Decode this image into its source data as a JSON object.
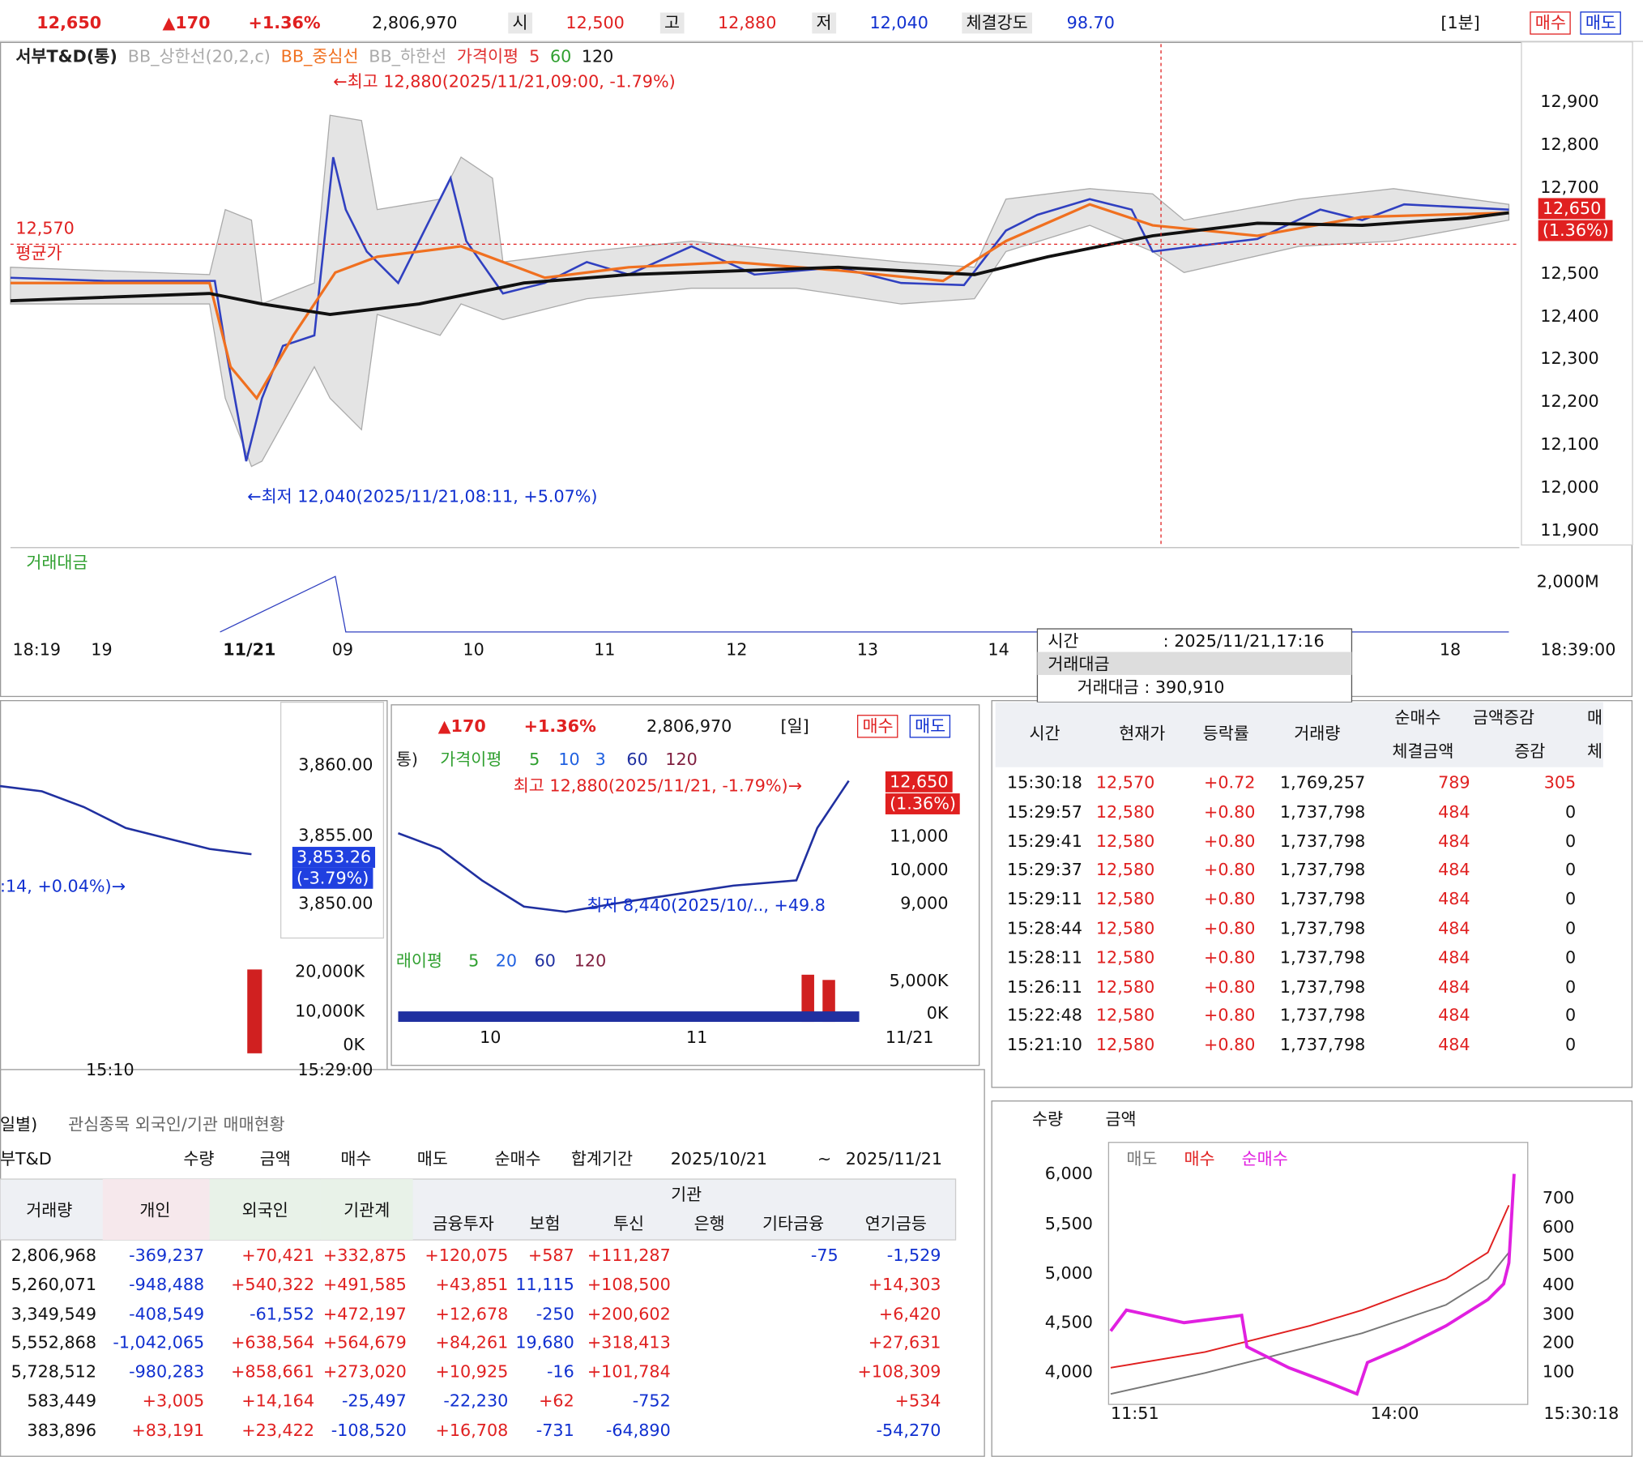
{
  "header": {
    "price": "12,650",
    "change": "▲170",
    "rate": "+1.36%",
    "volume": "2,806,970",
    "open_label": "시",
    "open": "12,500",
    "high_label": "고",
    "high": "12,880",
    "low_label": "저",
    "low": "12,040",
    "strength_label": "체결강도",
    "strength": "98.70",
    "period": "[1분]",
    "buy": "매수",
    "sell": "매도"
  },
  "main_chart": {
    "legend": [
      {
        "name": "서부T&D(통)",
        "color": "#222"
      },
      {
        "name": "BB_상한선(20,2,c)",
        "color": "#aaa"
      },
      {
        "name": "BB_중심선",
        "color": "#f07020"
      },
      {
        "name": "BB_하한선",
        "color": "#aaa"
      },
      {
        "name": "가격이평",
        "color": "#e03030"
      },
      {
        "name": "5",
        "color": "#e03030"
      },
      {
        "name": "60",
        "color": "#30a030"
      },
      {
        "name": "120",
        "color": "#111"
      }
    ],
    "high_note": "←최고 12,880(2025/11/21,09:00, -1.79%)",
    "low_note": "←최저 12,040(2025/11/21,08:11, +5.07%)",
    "avg_value": "12,570",
    "avg_label": "평균가",
    "current": "12,650",
    "current_rate": "(1.36%)",
    "yticks": [
      {
        "value": 12900,
        "label": "12,900"
      },
      {
        "value": 12800,
        "label": "12,800"
      },
      {
        "value": 12700,
        "label": "12,700"
      },
      {
        "value": 12500,
        "label": "12,500"
      },
      {
        "value": 12400,
        "label": "12,400"
      },
      {
        "value": 12300,
        "label": "12,300"
      },
      {
        "value": 12200,
        "label": "12,200"
      },
      {
        "value": 12100,
        "label": "12,100"
      },
      {
        "value": 12000,
        "label": "12,000"
      },
      {
        "value": 11900,
        "label": "11,900"
      }
    ],
    "volume_legend": "거래대금",
    "volume_tick": "2,000M",
    "x_labels": [
      "18:19",
      "19",
      "11/21",
      "09",
      "10",
      "11",
      "12",
      "13",
      "14",
      "18"
    ],
    "x_end": "18:39:00",
    "tooltip": {
      "time_label": "시간",
      "time": ": 2025/11/21,17:16",
      "group": "거래대금",
      "amount": "거래대금 : 390,910"
    }
  },
  "index_chart": {
    "yticks": [
      "3,860.00",
      "3,855.00",
      "3,850.00"
    ],
    "current": "3,853.26",
    "current_rate": "(-3.79%)",
    "note": ":14, +0.04%)→",
    "volume_ticks": [
      "20,000K",
      "10,000K",
      "0K"
    ],
    "x_label": "15:10",
    "x_end": "15:29:00"
  },
  "daily_chart": {
    "change": "▲170",
    "rate": "+1.36%",
    "volume": "2,806,970",
    "period": "[일]",
    "buy": "매수",
    "sell": "매도",
    "legend": [
      "통)",
      "가격이평",
      "5",
      "10",
      "3",
      "60",
      "120"
    ],
    "high_note": "최고 12,880(2025/11/21, -1.79%)→",
    "low_note": "최저 8,440(2025/10/.., +49.8",
    "yticks": [
      "11,000",
      "10,000",
      "9,000"
    ],
    "current": "12,650",
    "current_rate": "(1.36%)",
    "volume_legend": [
      "래이평",
      "5",
      "20",
      "60",
      "120"
    ],
    "volume_ticks": [
      "5,000K",
      "0K"
    ],
    "x_labels": [
      "10",
      "11",
      "11/21"
    ]
  },
  "tick_table": {
    "headers": [
      "시간",
      "현재가",
      "등락률",
      "거래량",
      "순매수",
      "금액증감",
      "체결금액",
      "증감",
      "매",
      "체"
    ],
    "rows": [
      [
        "15:30:18",
        "12,570",
        "+0.72",
        "1,769,257",
        "789",
        "305"
      ],
      [
        "15:29:57",
        "12,580",
        "+0.80",
        "1,737,798",
        "484",
        "0"
      ],
      [
        "15:29:41",
        "12,580",
        "+0.80",
        "1,737,798",
        "484",
        "0"
      ],
      [
        "15:29:37",
        "12,580",
        "+0.80",
        "1,737,798",
        "484",
        "0"
      ],
      [
        "15:29:11",
        "12,580",
        "+0.80",
        "1,737,798",
        "484",
        "0"
      ],
      [
        "15:28:44",
        "12,580",
        "+0.80",
        "1,737,798",
        "484",
        "0"
      ],
      [
        "15:28:11",
        "12,580",
        "+0.80",
        "1,737,798",
        "484",
        "0"
      ],
      [
        "15:26:11",
        "12,580",
        "+0.80",
        "1,737,798",
        "484",
        "0"
      ],
      [
        "15:22:48",
        "12,580",
        "+0.80",
        "1,737,798",
        "484",
        "0"
      ],
      [
        "15:21:10",
        "12,580",
        "+0.80",
        "1,737,798",
        "484",
        "0"
      ]
    ]
  },
  "investor_panel": {
    "tabs": [
      "일별)",
      "관심종목 외국인/기관 매매현황"
    ],
    "stock": "부T&D",
    "options": [
      "수량",
      "금액",
      "매수",
      "매도",
      "순매수"
    ],
    "period_label": "합계기간",
    "from": "2025/10/21",
    "tilde": "~",
    "to": "2025/11/21",
    "group_header": "기관",
    "headers": [
      "거래량",
      "개인",
      "외국인",
      "기관계",
      "금융투자",
      "보험",
      "투신",
      "은행",
      "기타금융",
      "연기금등"
    ],
    "rows": [
      [
        "2,806,968",
        "-369,237",
        "+70,421",
        "+332,875",
        "+120,075",
        "+587",
        "+111,287",
        null,
        "-75",
        "-1,529"
      ],
      [
        "5,260,071",
        "-948,488",
        "+540,322",
        "+491,585",
        "+43,851",
        "11,115",
        "+108,500",
        null,
        null,
        "+14,303"
      ],
      [
        "3,349,549",
        "-408,549",
        "-61,552",
        "+472,197",
        "+12,678",
        "-250",
        "+200,602",
        null,
        null,
        "+6,420"
      ],
      [
        "5,552,868",
        "-1,042,065",
        "+638,564",
        "+564,679",
        "+84,261",
        "19,680",
        "+318,413",
        null,
        null,
        "+27,631"
      ],
      [
        "5,728,512",
        "-980,283",
        "+858,661",
        "+273,020",
        "+10,925",
        "-16",
        "+101,784",
        null,
        null,
        "+108,309"
      ],
      [
        "583,449",
        "+3,005",
        "+14,164",
        "-25,497",
        "-22,230",
        "+62",
        "-752",
        null,
        null,
        "+534"
      ],
      [
        "383,896",
        "+83,191",
        "+23,422",
        "-108,520",
        "+16,708",
        "-731",
        "-64,890",
        null,
        null,
        "-54,270"
      ]
    ]
  },
  "flow_chart": {
    "options": [
      "수량",
      "금액"
    ],
    "legend": [
      {
        "name": "매도",
        "color": "#777"
      },
      {
        "name": "매수",
        "color": "#e02020"
      },
      {
        "name": "순매수",
        "color": "#e020e0"
      }
    ],
    "left_ticks": [
      "6,000",
      "5,500",
      "5,000",
      "4,500",
      "4,000"
    ],
    "right_ticks": [
      "700",
      "600",
      "500",
      "400",
      "300",
      "200",
      "100"
    ],
    "x_labels": [
      "11:51",
      "14:00"
    ],
    "x_end": "15:30:18"
  }
}
